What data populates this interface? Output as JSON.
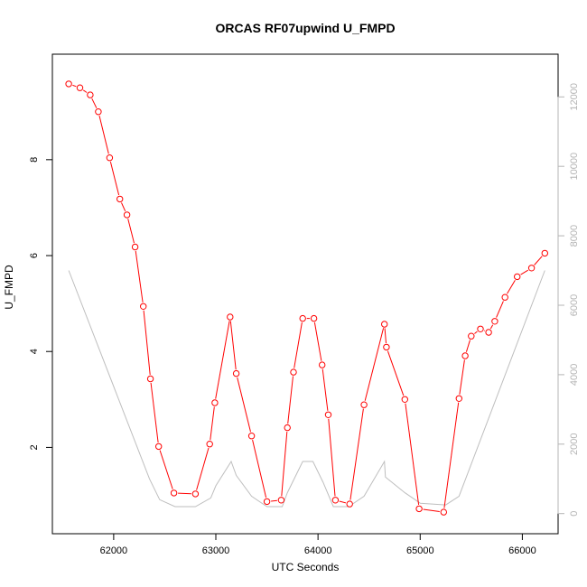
{
  "chart_data": {
    "type": "line",
    "title": "ORCAS RF07upwind U_FMPD",
    "xlabel": "UTC Seconds",
    "ylabel": "U_FMPD",
    "xlim": [
      61400,
      66350
    ],
    "ylim": [
      0.2,
      10.2
    ],
    "y2lim": [
      -580,
      13230
    ],
    "x_ticks": [
      62000,
      63000,
      64000,
      65000,
      66000
    ],
    "y_ticks": [
      2,
      4,
      6,
      8
    ],
    "y2_ticks": [
      0,
      2000,
      4000,
      6000,
      8000,
      10000,
      12000
    ],
    "grid": false,
    "primary_color": "#ff0000",
    "secondary_color": "#bebebe",
    "series": [
      {
        "values_x": [
          61560,
          61670,
          61770,
          61850,
          61960,
          62060,
          62130,
          62210,
          62290,
          62360,
          62440,
          62590,
          62800,
          62940,
          62990,
          63140,
          63200,
          63350,
          63500,
          63640,
          63700,
          63760,
          63850,
          63960,
          64040,
          64100,
          64170,
          64310,
          64450,
          64650,
          64670,
          64850,
          64990,
          65230,
          65380,
          65440,
          65500,
          65590,
          65670,
          65730,
          65830,
          65950,
          66090,
          66220
        ],
        "values_y": [
          9.58,
          9.5,
          9.35,
          9.0,
          8.04,
          7.18,
          6.85,
          6.18,
          4.94,
          3.43,
          2.02,
          1.05,
          1.03,
          2.07,
          2.93,
          4.72,
          3.54,
          2.24,
          0.87,
          0.9,
          2.41,
          3.57,
          4.69,
          4.69,
          3.72,
          2.68,
          0.9,
          0.82,
          2.89,
          4.57,
          4.09,
          3.0,
          0.72,
          0.65,
          3.02,
          3.91,
          4.32,
          4.47,
          4.4,
          4.63,
          5.13,
          5.56,
          5.74,
          6.05
        ]
      },
      {
        "values_x": [
          61560,
          62350,
          62450,
          62600,
          62800,
          62950,
          63000,
          63150,
          63200,
          63350,
          63500,
          63650,
          63700,
          63850,
          63950,
          64050,
          64150,
          64300,
          64450,
          64650,
          64660,
          64850,
          65000,
          65250,
          65380,
          66220
        ],
        "values_y": [
          7000,
          1000,
          400,
          200,
          200,
          450,
          800,
          1500,
          1100,
          500,
          200,
          200,
          600,
          1500,
          1500,
          900,
          200,
          200,
          500,
          1500,
          1050,
          600,
          300,
          250,
          500,
          7000
        ]
      }
    ]
  }
}
